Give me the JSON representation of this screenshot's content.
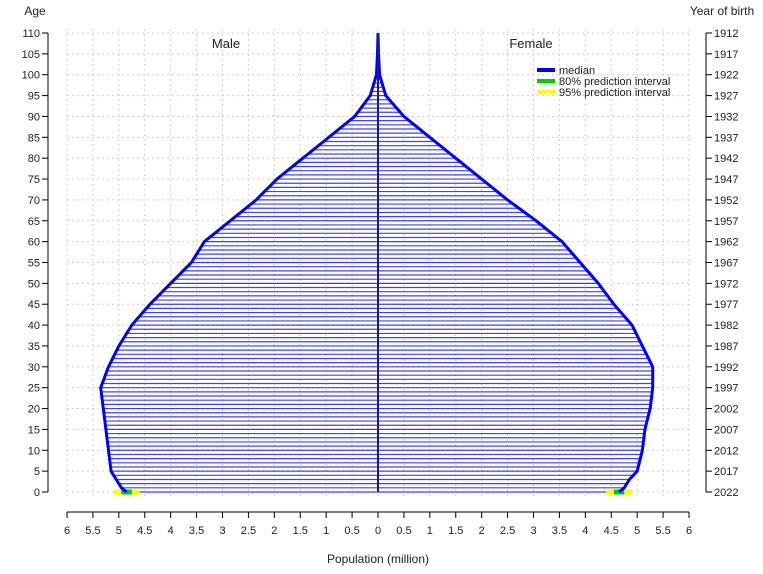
{
  "chart_data": {
    "type": "bar",
    "orientation": "horizontal-population-pyramid",
    "xlabel": "Population (million)",
    "ylabel_left": "Age",
    "ylabel_right": "Year of birth",
    "side_labels": {
      "left": "Male",
      "right": "Female"
    },
    "xlim": [
      -6,
      6
    ],
    "ylim": [
      0,
      110
    ],
    "x_ticks": [
      -6,
      -5.5,
      -5,
      -4.5,
      -4,
      -3.5,
      -3,
      -2.5,
      -2,
      -1.5,
      -1,
      -0.5,
      0,
      0.5,
      1,
      1.5,
      2,
      2.5,
      3,
      3.5,
      4,
      4.5,
      5,
      5.5,
      6
    ],
    "x_tick_labels": [
      "6",
      "5.5",
      "5",
      "4.5",
      "4",
      "3.5",
      "3",
      "2.5",
      "2",
      "1.5",
      "1",
      "0.5",
      "0",
      "0.5",
      "1",
      "1.5",
      "2",
      "2.5",
      "3",
      "3.5",
      "4",
      "4.5",
      "5",
      "5.5",
      "6"
    ],
    "y_ticks": [
      0,
      5,
      10,
      15,
      20,
      25,
      30,
      35,
      40,
      45,
      50,
      55,
      60,
      65,
      70,
      75,
      80,
      85,
      90,
      95,
      100,
      105,
      110
    ],
    "y_tick_labels": [
      "0",
      "5",
      "10",
      "15",
      "20",
      "25",
      "30",
      "35",
      "40",
      "45",
      "50",
      "55",
      "60",
      "65",
      "70",
      "75",
      "80",
      "85",
      "90",
      "95",
      "100",
      "105",
      "110"
    ],
    "year_tick_labels": [
      "2022",
      "2017",
      "2012",
      "2007",
      "2002",
      "1997",
      "1992",
      "1987",
      "1982",
      "1977",
      "1972",
      "1967",
      "1962",
      "1957",
      "1952",
      "1947",
      "1942",
      "1937",
      "1932",
      "1927",
      "1922",
      "1917",
      "1912"
    ],
    "legend": {
      "placement": "top-right",
      "entries": [
        {
          "label": "median",
          "color": "#0000ff"
        },
        {
          "label": "80% prediction interval",
          "color": "#00cc00"
        },
        {
          "label": "95% prediction interval",
          "color": "#ffff00"
        }
      ]
    },
    "grid": true,
    "colors": {
      "bar": "#0000ff",
      "pi80": "#00cc00",
      "pi95": "#ffff00"
    },
    "age_control_points": [
      0,
      1,
      3,
      5,
      10,
      15,
      20,
      25,
      30,
      35,
      40,
      45,
      50,
      55,
      60,
      65,
      70,
      75,
      80,
      85,
      90,
      95,
      100,
      105,
      110
    ],
    "male_control_values": [
      4.85,
      4.95,
      5.05,
      5.15,
      5.2,
      5.25,
      5.3,
      5.35,
      5.2,
      5.0,
      4.75,
      4.4,
      4.0,
      3.6,
      3.35,
      2.85,
      2.35,
      1.95,
      1.45,
      0.95,
      0.45,
      0.15,
      0.03,
      0.01,
      0.0
    ],
    "female_control_values": [
      4.65,
      4.75,
      4.85,
      5.0,
      5.1,
      5.15,
      5.25,
      5.3,
      5.3,
      5.1,
      4.9,
      4.55,
      4.25,
      3.9,
      3.55,
      3.05,
      2.5,
      2.0,
      1.5,
      1.0,
      0.5,
      0.15,
      0.03,
      0.01,
      0.0
    ],
    "age0_interval_80": {
      "male": [
        4.75,
        4.95
      ],
      "female": [
        4.55,
        4.75
      ]
    },
    "age0_interval_95": {
      "male": [
        4.6,
        5.1
      ],
      "female": [
        4.4,
        4.9
      ]
    }
  }
}
